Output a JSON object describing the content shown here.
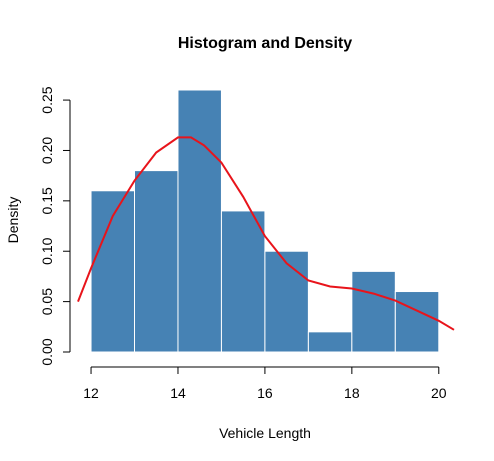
{
  "chart_data": {
    "type": "bar",
    "title": "Histogram and Density",
    "xlabel": "Vehicle Length",
    "ylabel": "Density",
    "bins": [
      {
        "x0": 12,
        "x1": 13,
        "value": 0.16
      },
      {
        "x0": 13,
        "x1": 14,
        "value": 0.18
      },
      {
        "x0": 14,
        "x1": 15,
        "value": 0.26
      },
      {
        "x0": 15,
        "x1": 16,
        "value": 0.14
      },
      {
        "x0": 16,
        "x1": 17,
        "value": 0.1
      },
      {
        "x0": 17,
        "x1": 18,
        "value": 0.02
      },
      {
        "x0": 18,
        "x1": 19,
        "value": 0.08
      },
      {
        "x0": 19,
        "x1": 20,
        "value": 0.06
      }
    ],
    "density_curve": {
      "x": [
        11.7,
        12.0,
        12.5,
        13.0,
        13.5,
        14.0,
        14.3,
        14.6,
        15.0,
        15.5,
        16.0,
        16.5,
        17.0,
        17.5,
        18.0,
        18.5,
        19.0,
        19.5,
        20.0,
        20.35
      ],
      "y": [
        0.05,
        0.083,
        0.135,
        0.17,
        0.198,
        0.213,
        0.213,
        0.205,
        0.188,
        0.154,
        0.115,
        0.088,
        0.071,
        0.065,
        0.063,
        0.058,
        0.051,
        0.041,
        0.031,
        0.022
      ]
    },
    "xlim": [
      11.7,
      20.35
    ],
    "ylim": [
      0,
      0.26
    ],
    "x_ticks": [
      "12",
      "14",
      "16",
      "18",
      "20"
    ],
    "x_tick_values": [
      12,
      14,
      16,
      18,
      20
    ],
    "y_ticks": [
      "0.00",
      "0.05",
      "0.10",
      "0.15",
      "0.20",
      "0.25"
    ],
    "y_tick_values": [
      0,
      0.05,
      0.1,
      0.15,
      0.2,
      0.25
    ],
    "grid": false,
    "colors": {
      "bars": "#4682B4",
      "bar_border": "#ffffff",
      "curve": "#E8141B",
      "axis": "#000000"
    }
  }
}
